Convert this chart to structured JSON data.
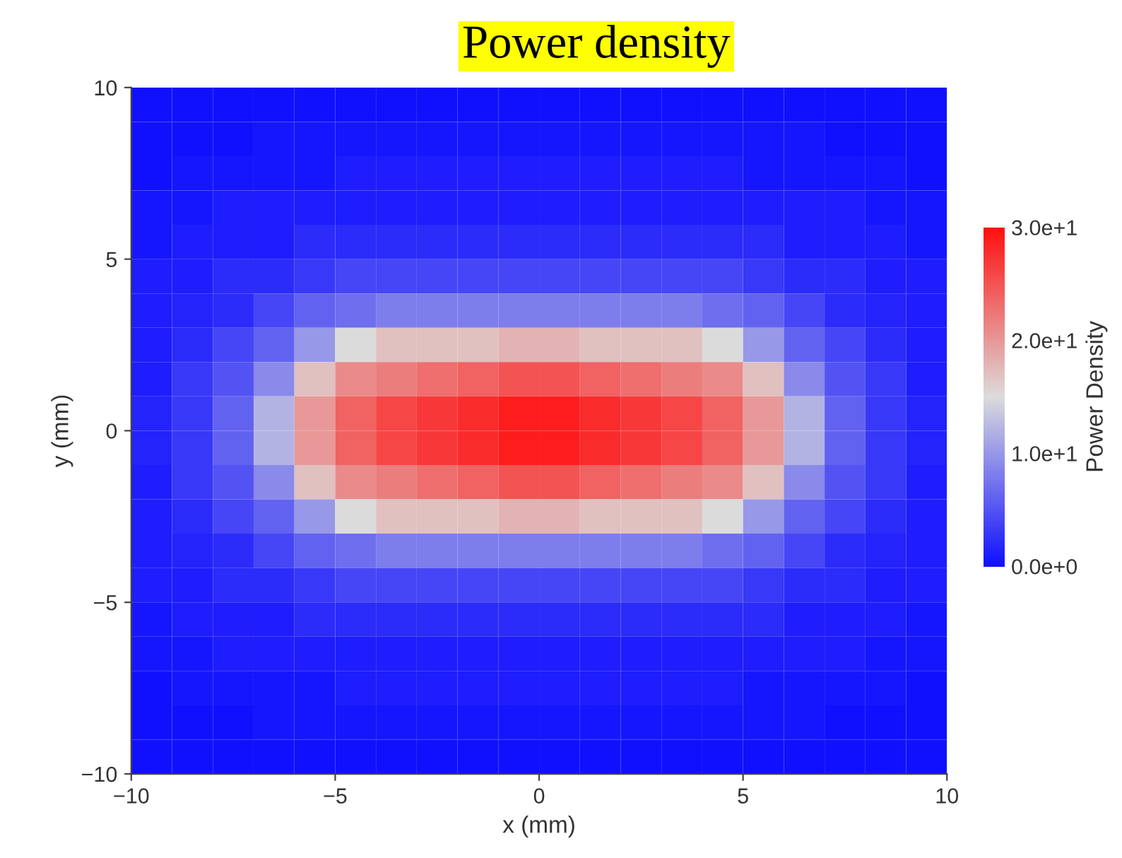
{
  "chart_data": {
    "type": "heatmap",
    "title": "Power density",
    "xlabel": "x (mm)",
    "ylabel": "y (mm)",
    "clabel": "Power Density",
    "x": [
      -9.5,
      -8.5,
      -7.5,
      -6.5,
      -5.5,
      -4.5,
      -3.5,
      -2.5,
      -1.5,
      -0.5,
      0.5,
      1.5,
      2.5,
      3.5,
      4.5,
      5.5,
      6.5,
      7.5,
      8.5,
      9.5
    ],
    "y": [
      9.5,
      8.5,
      7.5,
      6.5,
      5.5,
      4.5,
      3.5,
      2.5,
      1.5,
      0.5,
      -0.5,
      -1.5,
      -2.5,
      -3.5,
      -4.5,
      -5.5,
      -6.5,
      -7.5,
      -8.5,
      -9.5
    ],
    "xlim": [
      -10,
      10
    ],
    "ylim": [
      -10,
      10
    ],
    "xticks": [
      {
        "value": -10,
        "label": "−10"
      },
      {
        "value": -5,
        "label": "−5"
      },
      0,
      5,
      10
    ],
    "yticks": [
      {
        "value": -10,
        "label": "−10"
      },
      {
        "value": -5,
        "label": "−5"
      },
      0,
      5,
      10
    ],
    "clim": [
      0,
      30
    ],
    "cticks": [
      {
        "value": 0,
        "label": "0.0e+0"
      },
      {
        "value": 10,
        "label": "1.0e+1"
      },
      {
        "value": 20,
        "label": "2.0e+1"
      },
      {
        "value": 30,
        "label": "3.0e+1"
      }
    ],
    "colors": [
      "#1010ff",
      "#dcdcdc",
      "#ff1010"
    ],
    "grid": false,
    "cells": [
      [
        0,
        0,
        0,
        0,
        0,
        0,
        0,
        0,
        0,
        0,
        0,
        0,
        0,
        0,
        0,
        0,
        0,
        0,
        0,
        0
      ],
      [
        0,
        0,
        0,
        0.5,
        0.5,
        0.5,
        0.5,
        0.5,
        0.5,
        0.5,
        0.5,
        0.5,
        0.5,
        0.5,
        0.5,
        0.5,
        0.5,
        0,
        0,
        0
      ],
      [
        0,
        0.5,
        0.5,
        0.5,
        0.5,
        1,
        1,
        1,
        1,
        1,
        1,
        1,
        1,
        1,
        1,
        0.5,
        0.5,
        0.5,
        0.5,
        0
      ],
      [
        0.5,
        0.5,
        1,
        1,
        1,
        1,
        1,
        1,
        1,
        1,
        1,
        1,
        1,
        1,
        1,
        1,
        1,
        1,
        0.5,
        0.5
      ],
      [
        0.5,
        1,
        1,
        1,
        2,
        2,
        2,
        2,
        2,
        2,
        2,
        2,
        2,
        2,
        2,
        2,
        1,
        1,
        1,
        0.5
      ],
      [
        1,
        1,
        2,
        2,
        3,
        4,
        4,
        4,
        4,
        4,
        4,
        4,
        4,
        4,
        4,
        3,
        2,
        2,
        1,
        1
      ],
      [
        1,
        1.5,
        2,
        4,
        6,
        7,
        8,
        8,
        8,
        8,
        8,
        8,
        8,
        8,
        7,
        6,
        4,
        2,
        1.5,
        1
      ],
      [
        1,
        2,
        4,
        6,
        10,
        15,
        17,
        17,
        17,
        18,
        18,
        17,
        17,
        17,
        15,
        10,
        6,
        4,
        2,
        1
      ],
      [
        1,
        3,
        5,
        9,
        17,
        21,
        22,
        23,
        24,
        25,
        25,
        24,
        23,
        22,
        21,
        17,
        9,
        5,
        3,
        1
      ],
      [
        1.5,
        3,
        6,
        12,
        20,
        24,
        26,
        27,
        28,
        29,
        29,
        28,
        27,
        26,
        24,
        20,
        12,
        6,
        3,
        1.5
      ],
      [
        1.5,
        3,
        6,
        12,
        20,
        24,
        26,
        27,
        28,
        29,
        29,
        28,
        27,
        26,
        24,
        20,
        12,
        6,
        3,
        1.5
      ],
      [
        1,
        3,
        5,
        9,
        17,
        21,
        22,
        23,
        24,
        25,
        25,
        24,
        23,
        22,
        21,
        17,
        9,
        5,
        3,
        1
      ],
      [
        1,
        2,
        4,
        6,
        10,
        15,
        17,
        17,
        17,
        18,
        18,
        17,
        17,
        17,
        15,
        10,
        6,
        4,
        2,
        1
      ],
      [
        1,
        1.5,
        2,
        4,
        6,
        7,
        8,
        8,
        8,
        8,
        8,
        8,
        8,
        8,
        7,
        6,
        4,
        2,
        1.5,
        1
      ],
      [
        1,
        1,
        2,
        2,
        3,
        4,
        4,
        4,
        4,
        4,
        4,
        4,
        4,
        4,
        4,
        3,
        2,
        2,
        1,
        1
      ],
      [
        0.5,
        1,
        1,
        1,
        2,
        2,
        2,
        2,
        2,
        2,
        2,
        2,
        2,
        2,
        2,
        2,
        1,
        1,
        1,
        0.5
      ],
      [
        0.5,
        0.5,
        1,
        1,
        1,
        1,
        1,
        1,
        1,
        1,
        1,
        1,
        1,
        1,
        1,
        1,
        1,
        1,
        0.5,
        0.5
      ],
      [
        0,
        0.5,
        0.5,
        0.5,
        0.5,
        1,
        1,
        1,
        1,
        1,
        1,
        1,
        1,
        1,
        1,
        0.5,
        0.5,
        0.5,
        0.5,
        0
      ],
      [
        0,
        0,
        0,
        0.5,
        0.5,
        0.5,
        0.5,
        0.5,
        0.5,
        0.5,
        0.5,
        0.5,
        0.5,
        0.5,
        0.5,
        0.5,
        0.5,
        0,
        0,
        0
      ],
      [
        0,
        0,
        0,
        0,
        0,
        0,
        0,
        0,
        0,
        0,
        0,
        0,
        0,
        0,
        0,
        0,
        0,
        0,
        0,
        0
      ]
    ]
  }
}
